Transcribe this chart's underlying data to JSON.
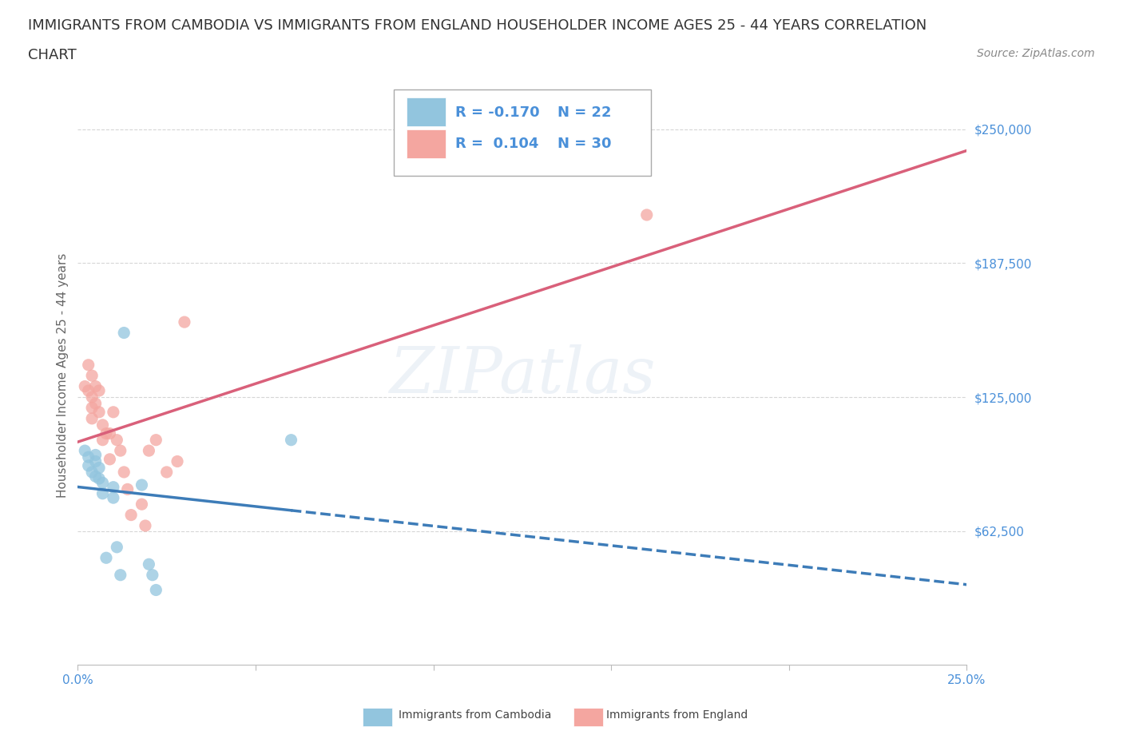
{
  "title_line1": "IMMIGRANTS FROM CAMBODIA VS IMMIGRANTS FROM ENGLAND HOUSEHOLDER INCOME AGES 25 - 44 YEARS CORRELATION",
  "title_line2": "CHART",
  "source_text": "Source: ZipAtlas.com",
  "ylabel": "Householder Income Ages 25 - 44 years",
  "xlim": [
    0.0,
    0.25
  ],
  "ylim": [
    0,
    270000
  ],
  "yticks": [
    62500,
    125000,
    187500,
    250000
  ],
  "ytick_labels": [
    "$62,500",
    "$125,000",
    "$187,500",
    "$250,000"
  ],
  "xtick_positions": [
    0.0,
    0.05,
    0.1,
    0.15,
    0.2,
    0.25
  ],
  "watermark": "ZIPatlas",
  "legend_r1": "R = -0.170",
  "legend_n1": "N = 22",
  "legend_r2": "R =  0.104",
  "legend_n2": "N = 30",
  "cambodia_color": "#92c5de",
  "england_color": "#f4a6a0",
  "cambodia_line_color": "#3d7cb8",
  "england_line_color": "#d9607a",
  "background_color": "#ffffff",
  "grid_color": "#cccccc",
  "axis_label_color": "#4a90d9",
  "title_color": "#333333",
  "source_color": "#888888",
  "cambodia_x": [
    0.002,
    0.003,
    0.003,
    0.004,
    0.005,
    0.005,
    0.005,
    0.006,
    0.006,
    0.007,
    0.007,
    0.008,
    0.01,
    0.01,
    0.011,
    0.012,
    0.013,
    0.018,
    0.02,
    0.021,
    0.022,
    0.06
  ],
  "cambodia_y": [
    100000,
    97000,
    93000,
    90000,
    98000,
    95000,
    88000,
    92000,
    87000,
    85000,
    80000,
    50000,
    83000,
    78000,
    55000,
    42000,
    155000,
    84000,
    47000,
    42000,
    35000,
    105000
  ],
  "england_x": [
    0.002,
    0.003,
    0.003,
    0.004,
    0.004,
    0.004,
    0.004,
    0.005,
    0.005,
    0.006,
    0.006,
    0.007,
    0.007,
    0.008,
    0.009,
    0.009,
    0.01,
    0.011,
    0.012,
    0.013,
    0.014,
    0.015,
    0.018,
    0.019,
    0.02,
    0.022,
    0.025,
    0.028,
    0.03,
    0.16
  ],
  "england_y": [
    130000,
    140000,
    128000,
    135000,
    125000,
    120000,
    115000,
    130000,
    122000,
    128000,
    118000,
    105000,
    112000,
    108000,
    108000,
    96000,
    118000,
    105000,
    100000,
    90000,
    82000,
    70000,
    75000,
    65000,
    100000,
    105000,
    90000,
    95000,
    160000,
    210000
  ],
  "title_fontsize": 13,
  "axis_label_fontsize": 11,
  "tick_fontsize": 11,
  "source_fontsize": 10,
  "legend_fontsize": 13,
  "scatter_size": 120,
  "scatter_alpha": 0.75,
  "line_width": 2.5
}
